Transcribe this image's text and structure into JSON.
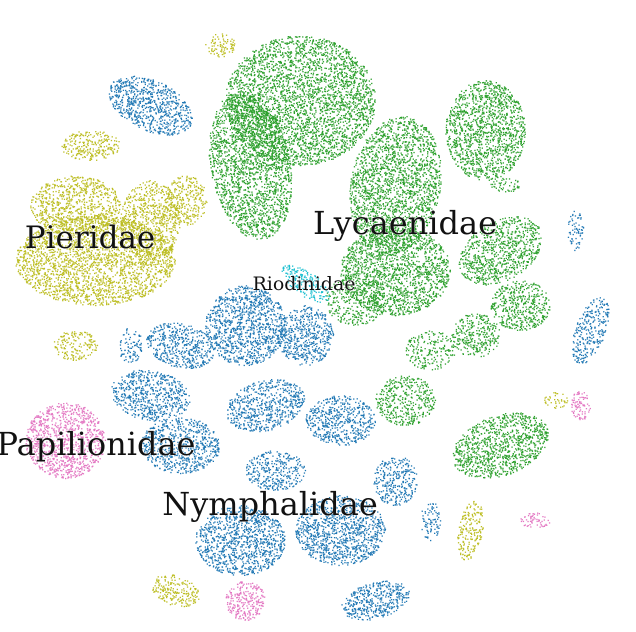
{
  "chart_data": {
    "type": "scatter",
    "title": "",
    "xlabel": "",
    "ylabel": "",
    "axes": "none",
    "grid": false,
    "legend": "none",
    "series": [
      {
        "name": "Lycaenidae",
        "color": "#2ca02c"
      },
      {
        "name": "Nymphalidae",
        "color": "#1f77b4"
      },
      {
        "name": "Pieridae",
        "color": "#bcbd22"
      },
      {
        "name": "Papilionidae",
        "color": "#e377c2"
      },
      {
        "name": "Riodinidae",
        "color": "#17becf"
      }
    ],
    "annotations": [
      {
        "text": "Lycaenidae",
        "series": "Lycaenidae"
      },
      {
        "text": "Pieridae",
        "series": "Pieridae"
      },
      {
        "text": "Riodinidae",
        "series": "Riodinidae"
      },
      {
        "text": "Papilionidae",
        "series": "Papilionidae"
      },
      {
        "text": "Nymphalidae",
        "series": "Nymphalidae"
      }
    ]
  }
}
